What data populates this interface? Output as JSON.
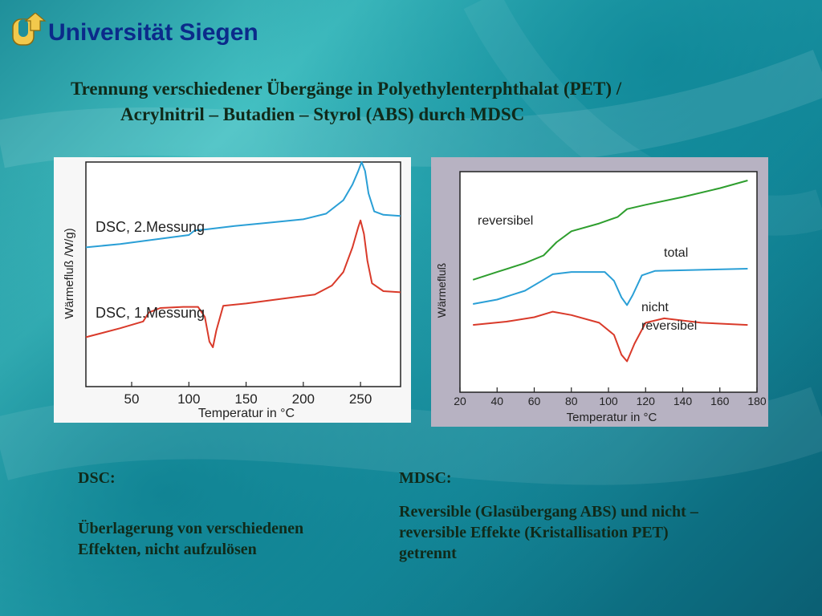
{
  "header": {
    "university": "Universität Siegen",
    "title_line1": "Trennung verschiedener Übergänge in Polyethylenterphthalat (PET) /",
    "title_line2": "Acrylnitril – Butadien – Styrol (ABS) durch MDSC"
  },
  "colors": {
    "blue_curve": "#2a9fd6",
    "red_curve": "#d93a2a",
    "green_curve": "#2e9e2e",
    "title_blue": "#0b2a8a"
  },
  "chart_data": [
    {
      "type": "line",
      "xlabel": "Temperatur in °C",
      "ylabel": "Wärmefluß /W/g)",
      "x_ticks": [
        "50",
        "100",
        "150",
        "200",
        "250"
      ],
      "xlim": [
        10,
        285
      ],
      "ylim": [
        0,
        10
      ],
      "grid": false,
      "series": [
        {
          "name": "DSC, 2.Messung",
          "color": "#2a9fd6",
          "points": [
            [
              10,
              6.2
            ],
            [
              40,
              6.35
            ],
            [
              70,
              6.55
            ],
            [
              100,
              6.75
            ],
            [
              105,
              6.95
            ],
            [
              115,
              7.0
            ],
            [
              140,
              7.15
            ],
            [
              170,
              7.3
            ],
            [
              200,
              7.45
            ],
            [
              220,
              7.7
            ],
            [
              235,
              8.3
            ],
            [
              243,
              9.0
            ],
            [
              248,
              9.6
            ],
            [
              251,
              10.0
            ],
            [
              254,
              9.6
            ],
            [
              257,
              8.6
            ],
            [
              262,
              7.8
            ],
            [
              270,
              7.65
            ],
            [
              285,
              7.6
            ]
          ]
        },
        {
          "name": "DSC, 1.Messung",
          "color": "#d93a2a",
          "points": [
            [
              10,
              2.2
            ],
            [
              40,
              2.6
            ],
            [
              60,
              2.9
            ],
            [
              65,
              3.3
            ],
            [
              75,
              3.5
            ],
            [
              95,
              3.55
            ],
            [
              108,
              3.55
            ],
            [
              114,
              3.1
            ],
            [
              118,
              2.0
            ],
            [
              121,
              1.75
            ],
            [
              124,
              2.5
            ],
            [
              130,
              3.6
            ],
            [
              150,
              3.7
            ],
            [
              180,
              3.9
            ],
            [
              210,
              4.1
            ],
            [
              225,
              4.5
            ],
            [
              235,
              5.1
            ],
            [
              243,
              6.2
            ],
            [
              248,
              7.1
            ],
            [
              250,
              7.4
            ],
            [
              253,
              6.8
            ],
            [
              256,
              5.6
            ],
            [
              260,
              4.6
            ],
            [
              270,
              4.25
            ],
            [
              285,
              4.2
            ]
          ]
        }
      ]
    },
    {
      "type": "line",
      "xlabel": "Temperatur in °C",
      "ylabel": "Wärmefluß",
      "x_ticks": [
        "20",
        "40",
        "60",
        "80",
        "100",
        "120",
        "140",
        "160",
        "180"
      ],
      "xlim": [
        20,
        180
      ],
      "ylim": [
        0,
        10
      ],
      "grid": false,
      "annotations": [
        "reversibel",
        "total",
        "nicht",
        "reversibel"
      ],
      "series": [
        {
          "name": "reversibel",
          "color": "#2e9e2e",
          "points": [
            [
              27,
              5.1
            ],
            [
              40,
              5.45
            ],
            [
              55,
              5.85
            ],
            [
              65,
              6.2
            ],
            [
              72,
              6.8
            ],
            [
              80,
              7.3
            ],
            [
              95,
              7.65
            ],
            [
              105,
              7.95
            ],
            [
              110,
              8.3
            ],
            [
              120,
              8.5
            ],
            [
              140,
              8.85
            ],
            [
              160,
              9.25
            ],
            [
              175,
              9.6
            ]
          ]
        },
        {
          "name": "total",
          "color": "#2a9fd6",
          "points": [
            [
              27,
              4.0
            ],
            [
              40,
              4.2
            ],
            [
              55,
              4.6
            ],
            [
              65,
              5.1
            ],
            [
              70,
              5.35
            ],
            [
              80,
              5.45
            ],
            [
              98,
              5.45
            ],
            [
              103,
              5.05
            ],
            [
              107,
              4.3
            ],
            [
              110,
              3.95
            ],
            [
              113,
              4.4
            ],
            [
              118,
              5.3
            ],
            [
              125,
              5.5
            ],
            [
              150,
              5.55
            ],
            [
              175,
              5.6
            ]
          ]
        },
        {
          "name": "nicht reversibel",
          "color": "#d93a2a",
          "points": [
            [
              27,
              3.05
            ],
            [
              45,
              3.2
            ],
            [
              60,
              3.4
            ],
            [
              70,
              3.65
            ],
            [
              80,
              3.5
            ],
            [
              95,
              3.15
            ],
            [
              103,
              2.6
            ],
            [
              107,
              1.7
            ],
            [
              110,
              1.4
            ],
            [
              114,
              2.2
            ],
            [
              120,
              3.15
            ],
            [
              130,
              3.35
            ],
            [
              150,
              3.15
            ],
            [
              175,
              3.05
            ]
          ]
        }
      ]
    }
  ],
  "dsc_column": {
    "heading": "DSC:",
    "text_line1": "Überlagerung von verschiedenen",
    "text_line2": "Effekten, nicht aufzulösen"
  },
  "mdsc_column": {
    "heading": "MDSC:",
    "text_line1": "Reversible (Glasübergang ABS) und nicht –",
    "text_line2": "reversible Effekte (Kristallisation PET)",
    "text_line3": "getrennt"
  }
}
